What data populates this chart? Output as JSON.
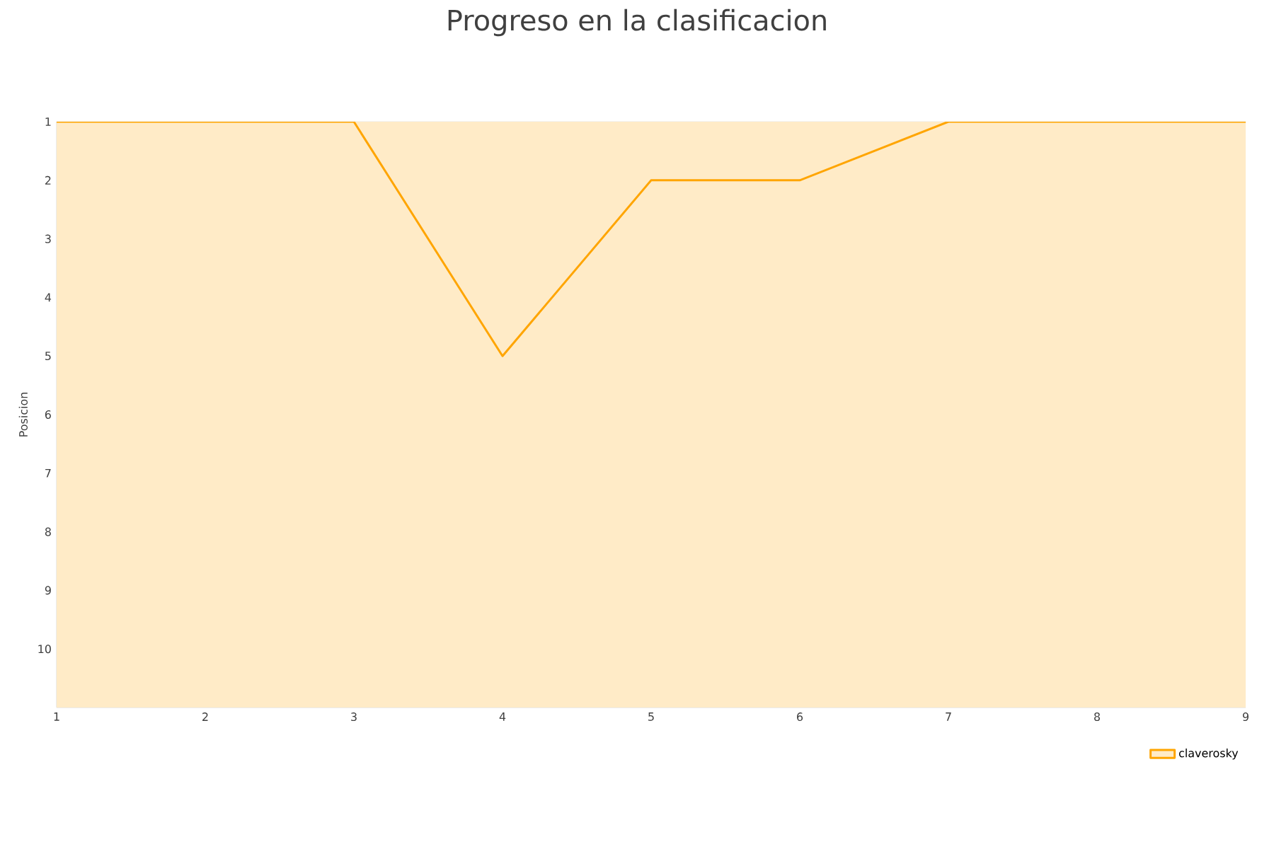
{
  "chart_data": {
    "type": "area",
    "title": "Progreso en la clasificacion",
    "ylabel": "Posicion",
    "x": [
      1,
      2,
      3,
      4,
      5,
      6,
      7,
      8,
      9
    ],
    "series": [
      {
        "name": "claverosky",
        "color": "#ffa500",
        "values": [
          1,
          1,
          1,
          5,
          2,
          2,
          1,
          1,
          1
        ]
      }
    ],
    "xlim": [
      1,
      9
    ],
    "xticks": [
      1,
      2,
      3,
      4,
      5,
      6,
      7,
      8,
      9
    ],
    "ylim": [
      11,
      1
    ],
    "yticks": [
      1,
      2,
      3,
      4,
      5,
      6,
      7,
      8,
      9,
      10
    ],
    "grid": "y",
    "legend": "bottom right"
  }
}
